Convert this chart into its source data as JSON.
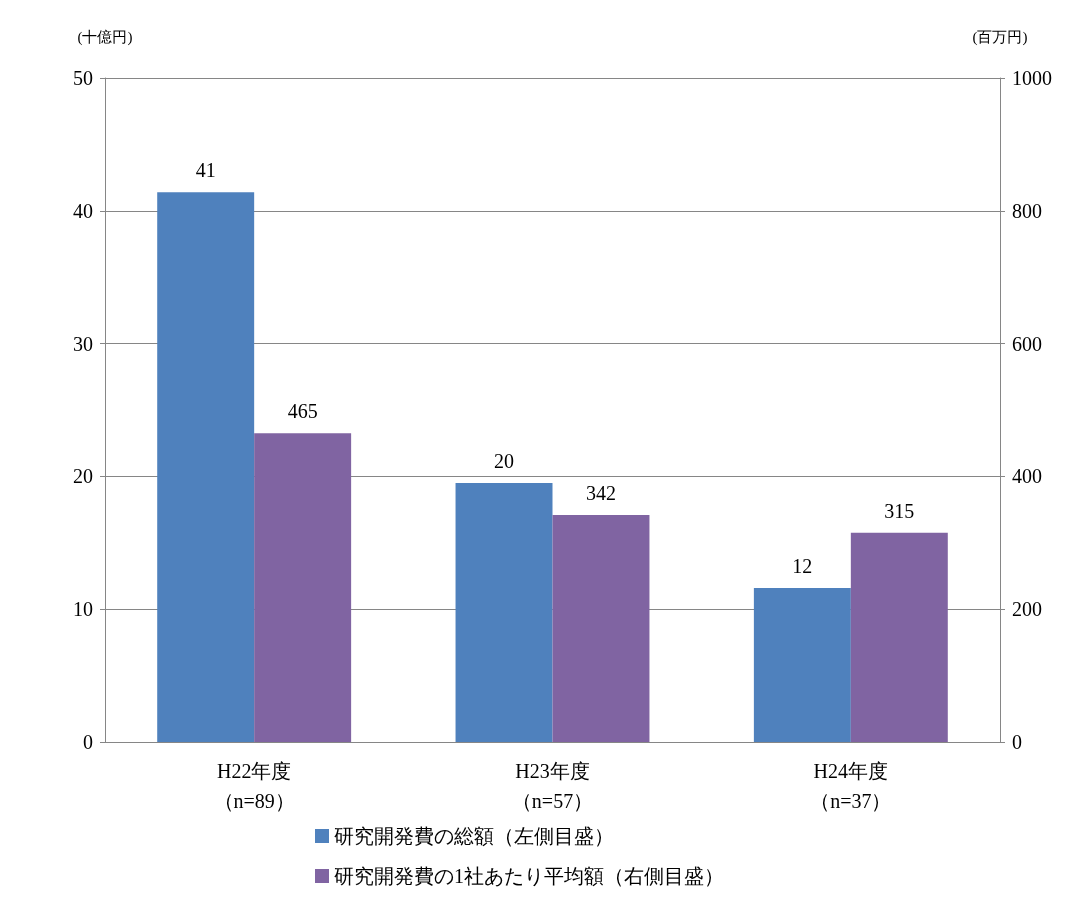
{
  "chart_data": {
    "type": "bar",
    "ylabel": "(十億円)",
    "y2label": "(百万円)",
    "categories": [
      "H22年度（n=89）",
      "H23年度（n=57）",
      "H24年度（n=37）"
    ],
    "series": [
      {
        "name": "研究開発費の総額（左側目盛）",
        "color": "#4f81bd",
        "values": [
          41.4,
          19.5,
          11.6
        ],
        "value_labels": [
          "41",
          "20",
          "12"
        ]
      },
      {
        "name": "研究開発費の1社あたり平均額（右側目盛）",
        "color": "#8064a2",
        "values": [
          465,
          342,
          315
        ],
        "value_labels": [
          "465",
          "342",
          "315"
        ],
        "axis": "y2"
      }
    ],
    "ylim": [
      0,
      50
    ],
    "yticks": [
      0,
      10,
      20,
      30,
      40,
      50
    ],
    "y2lim": [
      0,
      1000
    ],
    "y2ticks": [
      0,
      200,
      400,
      600,
      800,
      1000
    ],
    "grid": "y",
    "legend": "bottom"
  }
}
